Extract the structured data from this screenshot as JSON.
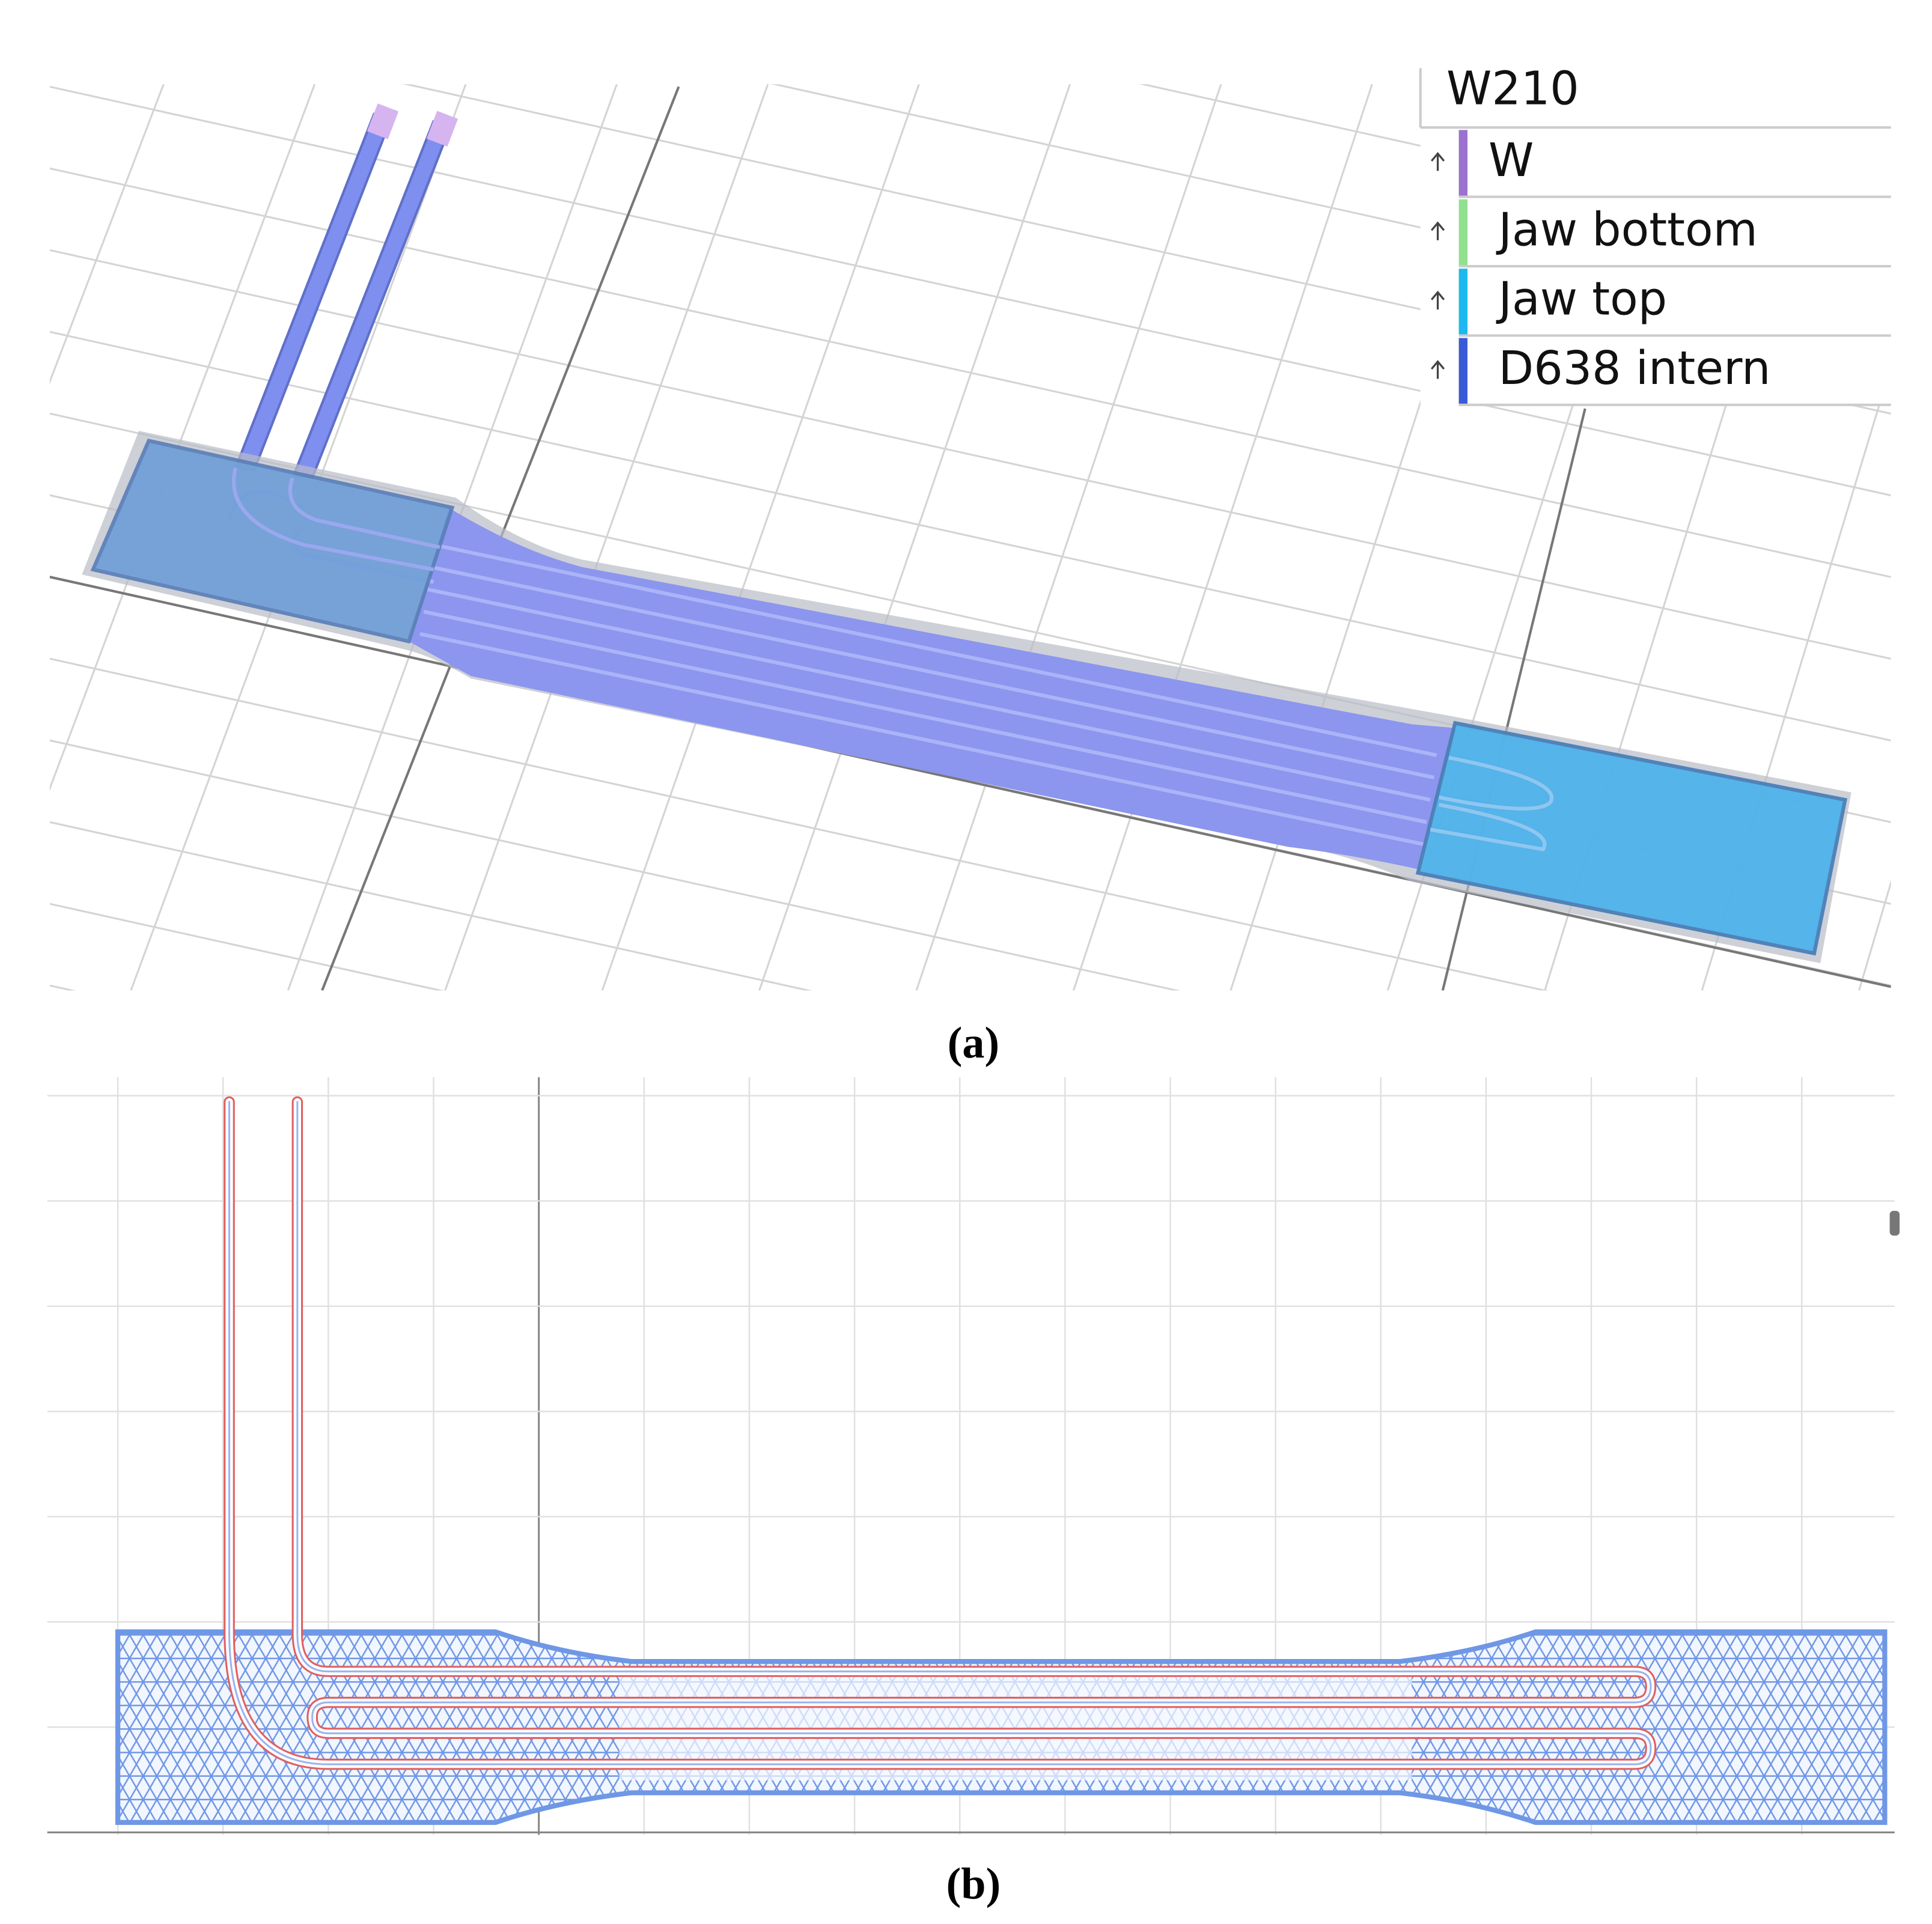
{
  "legend": {
    "title": "W210",
    "items": [
      "W",
      "Jaw bottom",
      "Jaw top",
      "D638 intern"
    ]
  },
  "captions": [
    "(a)",
    "(b)"
  ]
}
